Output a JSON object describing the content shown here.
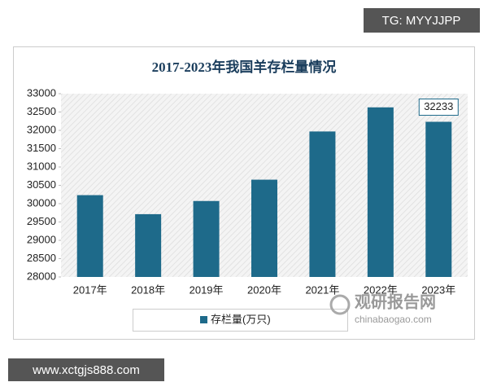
{
  "chart_data": {
    "type": "bar",
    "title": "2017-2023年我国羊存栏量情况",
    "categories": [
      "2017年",
      "2018年",
      "2019年",
      "2020年",
      "2021年",
      "2022年",
      "2023年"
    ],
    "series": [
      {
        "name": "存栏量(万只)",
        "color": "#1e6a8a",
        "values": [
          30232,
          29713,
          30072,
          30654,
          31969,
          32627,
          32233
        ]
      }
    ],
    "ylim": [
      28000,
      33000
    ],
    "yticks": [
      28000,
      28500,
      29000,
      29500,
      30000,
      30500,
      31000,
      31500,
      32000,
      32500,
      33000
    ],
    "grid": false
  },
  "watermarks": {
    "top": "TG: MYYJJPP",
    "bottom": "www.xctgjs888.com",
    "logo_cn": "观研报告网",
    "logo_en": "chinabaogao.com"
  }
}
